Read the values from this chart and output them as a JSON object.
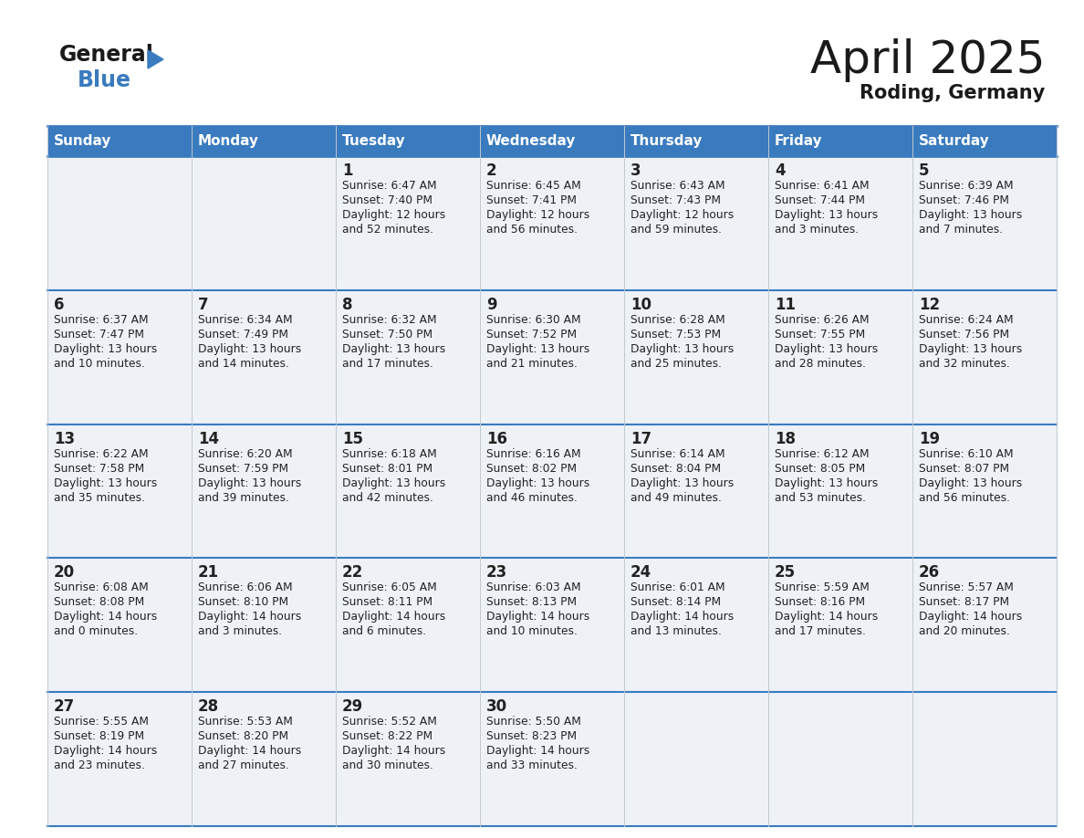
{
  "title": "April 2025",
  "subtitle": "Roding, Germany",
  "header_color": "#3a7bbf",
  "header_text_color": "#ffffff",
  "cell_bg_color": "#eef2f7",
  "text_color": "#222222",
  "border_color": "#3a7bbf",
  "logo_text_color": "#1a1a1a",
  "logo_blue_color": "#3a7bbf",
  "days_of_week": [
    "Sunday",
    "Monday",
    "Tuesday",
    "Wednesday",
    "Thursday",
    "Friday",
    "Saturday"
  ],
  "weeks": [
    [
      {
        "day": "",
        "sunrise": "",
        "sunset": "",
        "daylight": ""
      },
      {
        "day": "",
        "sunrise": "",
        "sunset": "",
        "daylight": ""
      },
      {
        "day": "1",
        "sunrise": "Sunrise: 6:47 AM",
        "sunset": "Sunset: 7:40 PM",
        "daylight": "Daylight: 12 hours\nand 52 minutes."
      },
      {
        "day": "2",
        "sunrise": "Sunrise: 6:45 AM",
        "sunset": "Sunset: 7:41 PM",
        "daylight": "Daylight: 12 hours\nand 56 minutes."
      },
      {
        "day": "3",
        "sunrise": "Sunrise: 6:43 AM",
        "sunset": "Sunset: 7:43 PM",
        "daylight": "Daylight: 12 hours\nand 59 minutes."
      },
      {
        "day": "4",
        "sunrise": "Sunrise: 6:41 AM",
        "sunset": "Sunset: 7:44 PM",
        "daylight": "Daylight: 13 hours\nand 3 minutes."
      },
      {
        "day": "5",
        "sunrise": "Sunrise: 6:39 AM",
        "sunset": "Sunset: 7:46 PM",
        "daylight": "Daylight: 13 hours\nand 7 minutes."
      }
    ],
    [
      {
        "day": "6",
        "sunrise": "Sunrise: 6:37 AM",
        "sunset": "Sunset: 7:47 PM",
        "daylight": "Daylight: 13 hours\nand 10 minutes."
      },
      {
        "day": "7",
        "sunrise": "Sunrise: 6:34 AM",
        "sunset": "Sunset: 7:49 PM",
        "daylight": "Daylight: 13 hours\nand 14 minutes."
      },
      {
        "day": "8",
        "sunrise": "Sunrise: 6:32 AM",
        "sunset": "Sunset: 7:50 PM",
        "daylight": "Daylight: 13 hours\nand 17 minutes."
      },
      {
        "day": "9",
        "sunrise": "Sunrise: 6:30 AM",
        "sunset": "Sunset: 7:52 PM",
        "daylight": "Daylight: 13 hours\nand 21 minutes."
      },
      {
        "day": "10",
        "sunrise": "Sunrise: 6:28 AM",
        "sunset": "Sunset: 7:53 PM",
        "daylight": "Daylight: 13 hours\nand 25 minutes."
      },
      {
        "day": "11",
        "sunrise": "Sunrise: 6:26 AM",
        "sunset": "Sunset: 7:55 PM",
        "daylight": "Daylight: 13 hours\nand 28 minutes."
      },
      {
        "day": "12",
        "sunrise": "Sunrise: 6:24 AM",
        "sunset": "Sunset: 7:56 PM",
        "daylight": "Daylight: 13 hours\nand 32 minutes."
      }
    ],
    [
      {
        "day": "13",
        "sunrise": "Sunrise: 6:22 AM",
        "sunset": "Sunset: 7:58 PM",
        "daylight": "Daylight: 13 hours\nand 35 minutes."
      },
      {
        "day": "14",
        "sunrise": "Sunrise: 6:20 AM",
        "sunset": "Sunset: 7:59 PM",
        "daylight": "Daylight: 13 hours\nand 39 minutes."
      },
      {
        "day": "15",
        "sunrise": "Sunrise: 6:18 AM",
        "sunset": "Sunset: 8:01 PM",
        "daylight": "Daylight: 13 hours\nand 42 minutes."
      },
      {
        "day": "16",
        "sunrise": "Sunrise: 6:16 AM",
        "sunset": "Sunset: 8:02 PM",
        "daylight": "Daylight: 13 hours\nand 46 minutes."
      },
      {
        "day": "17",
        "sunrise": "Sunrise: 6:14 AM",
        "sunset": "Sunset: 8:04 PM",
        "daylight": "Daylight: 13 hours\nand 49 minutes."
      },
      {
        "day": "18",
        "sunrise": "Sunrise: 6:12 AM",
        "sunset": "Sunset: 8:05 PM",
        "daylight": "Daylight: 13 hours\nand 53 minutes."
      },
      {
        "day": "19",
        "sunrise": "Sunrise: 6:10 AM",
        "sunset": "Sunset: 8:07 PM",
        "daylight": "Daylight: 13 hours\nand 56 minutes."
      }
    ],
    [
      {
        "day": "20",
        "sunrise": "Sunrise: 6:08 AM",
        "sunset": "Sunset: 8:08 PM",
        "daylight": "Daylight: 14 hours\nand 0 minutes."
      },
      {
        "day": "21",
        "sunrise": "Sunrise: 6:06 AM",
        "sunset": "Sunset: 8:10 PM",
        "daylight": "Daylight: 14 hours\nand 3 minutes."
      },
      {
        "day": "22",
        "sunrise": "Sunrise: 6:05 AM",
        "sunset": "Sunset: 8:11 PM",
        "daylight": "Daylight: 14 hours\nand 6 minutes."
      },
      {
        "day": "23",
        "sunrise": "Sunrise: 6:03 AM",
        "sunset": "Sunset: 8:13 PM",
        "daylight": "Daylight: 14 hours\nand 10 minutes."
      },
      {
        "day": "24",
        "sunrise": "Sunrise: 6:01 AM",
        "sunset": "Sunset: 8:14 PM",
        "daylight": "Daylight: 14 hours\nand 13 minutes."
      },
      {
        "day": "25",
        "sunrise": "Sunrise: 5:59 AM",
        "sunset": "Sunset: 8:16 PM",
        "daylight": "Daylight: 14 hours\nand 17 minutes."
      },
      {
        "day": "26",
        "sunrise": "Sunrise: 5:57 AM",
        "sunset": "Sunset: 8:17 PM",
        "daylight": "Daylight: 14 hours\nand 20 minutes."
      }
    ],
    [
      {
        "day": "27",
        "sunrise": "Sunrise: 5:55 AM",
        "sunset": "Sunset: 8:19 PM",
        "daylight": "Daylight: 14 hours\nand 23 minutes."
      },
      {
        "day": "28",
        "sunrise": "Sunrise: 5:53 AM",
        "sunset": "Sunset: 8:20 PM",
        "daylight": "Daylight: 14 hours\nand 27 minutes."
      },
      {
        "day": "29",
        "sunrise": "Sunrise: 5:52 AM",
        "sunset": "Sunset: 8:22 PM",
        "daylight": "Daylight: 14 hours\nand 30 minutes."
      },
      {
        "day": "30",
        "sunrise": "Sunrise: 5:50 AM",
        "sunset": "Sunset: 8:23 PM",
        "daylight": "Daylight: 14 hours\nand 33 minutes."
      },
      {
        "day": "",
        "sunrise": "",
        "sunset": "",
        "daylight": ""
      },
      {
        "day": "",
        "sunrise": "",
        "sunset": "",
        "daylight": ""
      },
      {
        "day": "",
        "sunrise": "",
        "sunset": "",
        "daylight": ""
      }
    ]
  ]
}
